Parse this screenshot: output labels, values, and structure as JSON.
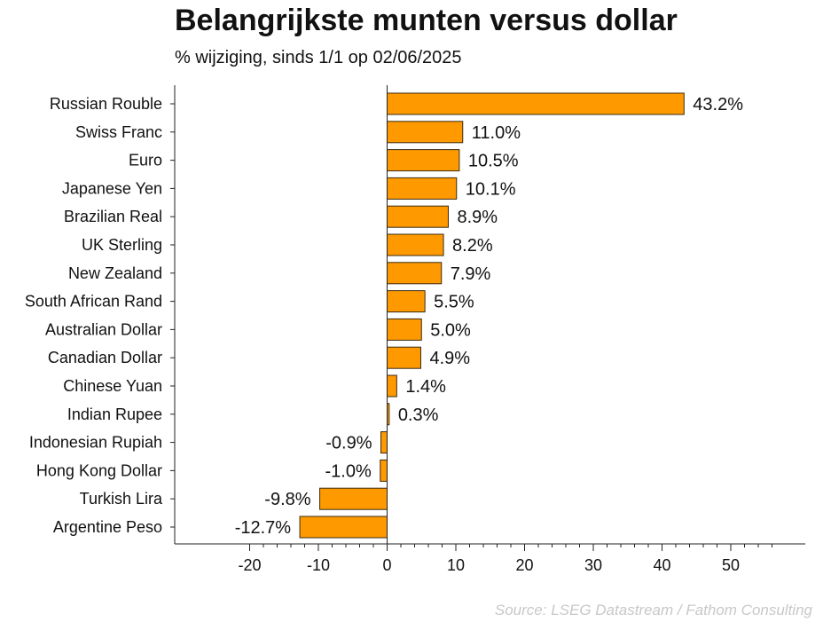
{
  "header": {
    "title": "Belangrijkste munten versus dollar",
    "subtitle": "% wijziging, sinds 1/1 op 02/06/2025"
  },
  "footer": {
    "source": "Source: LSEG Datastream / Fathom Consulting"
  },
  "colors": {
    "bar_fill": "#ff9900",
    "bar_stroke": "#3a2a10",
    "axis": "#222222",
    "text": "#111111",
    "source_text": "#c8c8c8"
  },
  "chart_data": {
    "type": "bar",
    "orientation": "horizontal",
    "title": "Belangrijkste munten versus dollar",
    "subtitle": "% wijziging, sinds 1/1 op 02/06/2025",
    "xlabel": "",
    "ylabel": "",
    "xlim": [
      -20,
      60
    ],
    "xticks": [
      -20,
      -10,
      0,
      10,
      20,
      30,
      40,
      50
    ],
    "grid": false,
    "legend": "none",
    "categories": [
      "Russian Rouble",
      "Swiss Franc",
      "Euro",
      "Japanese Yen",
      "Brazilian Real",
      "UK Sterling",
      "New Zealand",
      "South African Rand",
      "Australian Dollar",
      "Canadian Dollar",
      "Chinese Yuan",
      "Indian Rupee",
      "Indonesian Rupiah",
      "Hong Kong Dollar",
      "Turkish Lira",
      "Argentine Peso"
    ],
    "values": [
      43.2,
      11.0,
      10.5,
      10.1,
      8.9,
      8.2,
      7.9,
      5.5,
      5.0,
      4.9,
      1.4,
      0.3,
      -0.9,
      -1.0,
      -9.8,
      -12.7
    ],
    "data_labels": [
      "43.2%",
      "11.0%",
      "10.5%",
      "10.1%",
      "8.9%",
      "8.2%",
      "7.9%",
      "5.5%",
      "5.0%",
      "4.9%",
      "1.4%",
      "0.3%",
      "-0.9%",
      "-1.0%",
      "-9.8%",
      "-12.7%"
    ]
  }
}
